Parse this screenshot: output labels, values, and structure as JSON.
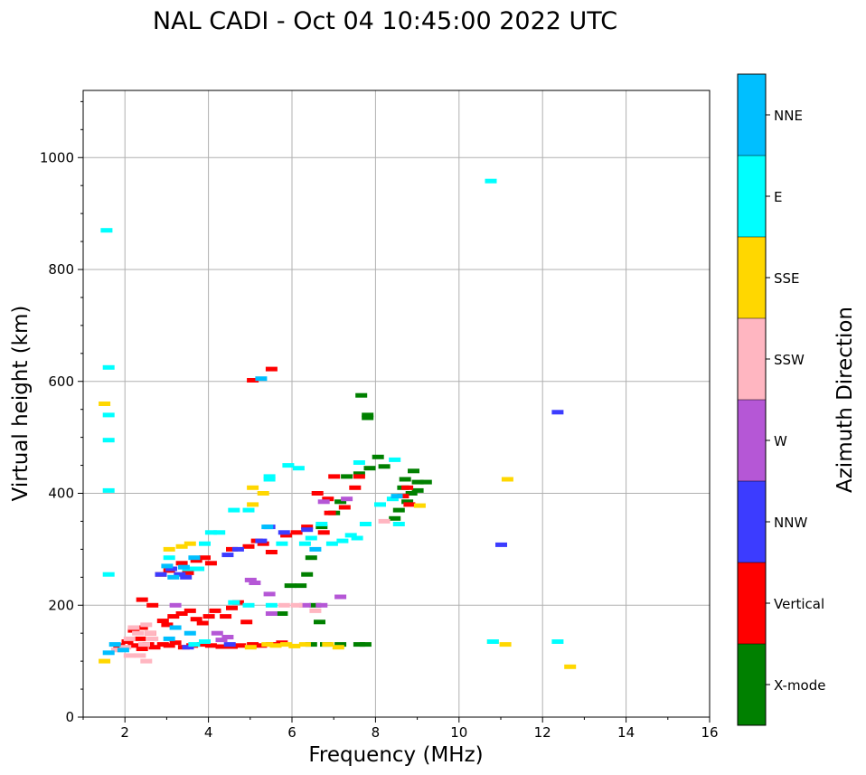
{
  "chart_data": {
    "type": "scatter",
    "title": "NAL CADI - Oct 04 10:45:00 2022 UTC",
    "xlabel": "Frequency (MHz)",
    "ylabel": "Virtual height (km)",
    "xlim": [
      1,
      16
    ],
    "ylim": [
      0,
      1120
    ],
    "xticks": [
      2,
      4,
      6,
      8,
      10,
      12,
      14,
      16
    ],
    "yticks": [
      0,
      200,
      400,
      600,
      800,
      1000
    ],
    "grid": true,
    "colorbar_label": "Azimuth Direction",
    "colorbar": [
      {
        "label": "X-mode",
        "color": "#008000"
      },
      {
        "label": "Vertical",
        "color": "#ff0000"
      },
      {
        "label": "NNW",
        "color": "#3c3cff"
      },
      {
        "label": "W",
        "color": "#b557d6"
      },
      {
        "label": "SSW",
        "color": "#ffb6c1"
      },
      {
        "label": "SSE",
        "color": "#ffd700"
      },
      {
        "label": "E",
        "color": "#00ffff"
      },
      {
        "label": "NNE",
        "color": "#00bfff"
      }
    ],
    "series": [
      {
        "name": "X-mode",
        "points": [
          [
            6.45,
            130
          ],
          [
            6.8,
            130
          ],
          [
            7.15,
            130
          ],
          [
            7.6,
            130
          ],
          [
            7.75,
            130
          ],
          [
            5.75,
            185
          ],
          [
            5.95,
            235
          ],
          [
            6.2,
            235
          ],
          [
            6.35,
            255
          ],
          [
            6.55,
            200
          ],
          [
            6.65,
            170
          ],
          [
            6.45,
            285
          ],
          [
            6.7,
            340
          ],
          [
            7.0,
            365
          ],
          [
            7.15,
            385
          ],
          [
            7.3,
            430
          ],
          [
            7.6,
            435
          ],
          [
            7.65,
            575
          ],
          [
            7.8,
            540
          ],
          [
            7.8,
            535
          ],
          [
            7.85,
            445
          ],
          [
            8.05,
            465
          ],
          [
            8.2,
            448
          ],
          [
            8.45,
            355
          ],
          [
            8.55,
            370
          ],
          [
            8.65,
            410
          ],
          [
            8.7,
            425
          ],
          [
            8.85,
            400
          ],
          [
            8.9,
            440
          ],
          [
            9.0,
            420
          ],
          [
            9.2,
            420
          ],
          [
            8.75,
            385
          ],
          [
            9.0,
            405
          ]
        ]
      },
      {
        "name": "Vertical",
        "points": [
          [
            1.85,
            128
          ],
          [
            2.05,
            135
          ],
          [
            2.2,
            128
          ],
          [
            2.35,
            140
          ],
          [
            2.4,
            122
          ],
          [
            2.55,
            130
          ],
          [
            2.7,
            125
          ],
          [
            2.9,
            130
          ],
          [
            3.05,
            128
          ],
          [
            3.2,
            133
          ],
          [
            3.4,
            125
          ],
          [
            3.6,
            128
          ],
          [
            3.85,
            130
          ],
          [
            4.05,
            128
          ],
          [
            4.3,
            126
          ],
          [
            4.55,
            126
          ],
          [
            4.75,
            128
          ],
          [
            5.05,
            130
          ],
          [
            5.25,
            128
          ],
          [
            5.5,
            130
          ],
          [
            5.75,
            133
          ],
          [
            2.2,
            155
          ],
          [
            2.4,
            160
          ],
          [
            2.6,
            150
          ],
          [
            2.9,
            172
          ],
          [
            3.0,
            165
          ],
          [
            3.15,
            180
          ],
          [
            3.35,
            185
          ],
          [
            3.55,
            190
          ],
          [
            3.7,
            175
          ],
          [
            3.85,
            168
          ],
          [
            4.0,
            180
          ],
          [
            4.15,
            190
          ],
          [
            4.4,
            180
          ],
          [
            4.55,
            195
          ],
          [
            4.7,
            205
          ],
          [
            4.9,
            170
          ],
          [
            2.4,
            210
          ],
          [
            2.65,
            200
          ],
          [
            2.85,
            255
          ],
          [
            3.05,
            262
          ],
          [
            3.35,
            275
          ],
          [
            3.5,
            258
          ],
          [
            3.7,
            280
          ],
          [
            3.9,
            285
          ],
          [
            4.05,
            275
          ],
          [
            4.55,
            300
          ],
          [
            4.95,
            305
          ],
          [
            5.15,
            315
          ],
          [
            5.3,
            310
          ],
          [
            5.5,
            295
          ],
          [
            5.85,
            325
          ],
          [
            6.1,
            330
          ],
          [
            6.35,
            340
          ],
          [
            6.75,
            330
          ],
          [
            6.9,
            365
          ],
          [
            7.25,
            375
          ],
          [
            7.5,
            410
          ],
          [
            6.6,
            400
          ],
          [
            6.85,
            390
          ],
          [
            7.0,
            430
          ],
          [
            7.6,
            430
          ],
          [
            5.5,
            622
          ],
          [
            5.05,
            602
          ],
          [
            8.65,
            395
          ],
          [
            8.75,
            410
          ],
          [
            8.8,
            380
          ]
        ]
      },
      {
        "name": "NNW",
        "points": [
          [
            2.85,
            255
          ],
          [
            3.1,
            265
          ],
          [
            3.3,
            255
          ],
          [
            3.45,
            250
          ],
          [
            4.45,
            290
          ],
          [
            4.7,
            300
          ],
          [
            5.25,
            315
          ],
          [
            5.45,
            340
          ],
          [
            5.8,
            330
          ],
          [
            6.35,
            335
          ],
          [
            4.5,
            130
          ],
          [
            3.5,
            125
          ],
          [
            11.0,
            308
          ],
          [
            12.35,
            545
          ]
        ]
      },
      {
        "name": "W",
        "points": [
          [
            4.2,
            150
          ],
          [
            4.3,
            138
          ],
          [
            4.45,
            143
          ],
          [
            5.0,
            245
          ],
          [
            5.1,
            240
          ],
          [
            5.45,
            220
          ],
          [
            5.5,
            185
          ],
          [
            6.3,
            200
          ],
          [
            6.7,
            200
          ],
          [
            7.15,
            215
          ],
          [
            6.75,
            385
          ],
          [
            7.3,
            390
          ],
          [
            3.2,
            200
          ]
        ]
      },
      {
        "name": "SSW",
        "points": [
          [
            1.8,
            120
          ],
          [
            2.0,
            125
          ],
          [
            2.1,
            140
          ],
          [
            2.2,
            160
          ],
          [
            2.3,
            150
          ],
          [
            2.35,
            110
          ],
          [
            2.45,
            130
          ],
          [
            2.5,
            165
          ],
          [
            2.6,
            150
          ],
          [
            2.1,
            110
          ],
          [
            2.5,
            100
          ],
          [
            2.65,
            140
          ],
          [
            8.2,
            350
          ],
          [
            5.8,
            200
          ],
          [
            6.1,
            200
          ],
          [
            6.55,
            190
          ]
        ]
      },
      {
        "name": "SSE",
        "points": [
          [
            1.5,
            100
          ],
          [
            1.5,
            560
          ],
          [
            5.0,
            125
          ],
          [
            5.4,
            130
          ],
          [
            5.6,
            128
          ],
          [
            5.85,
            130
          ],
          [
            6.05,
            127
          ],
          [
            6.3,
            130
          ],
          [
            6.85,
            130
          ],
          [
            7.1,
            125
          ],
          [
            5.05,
            380
          ],
          [
            5.3,
            400
          ],
          [
            5.05,
            410
          ],
          [
            3.05,
            300
          ],
          [
            3.35,
            305
          ],
          [
            3.55,
            310
          ],
          [
            10.8,
            135
          ],
          [
            11.1,
            130
          ],
          [
            11.15,
            425
          ],
          [
            12.65,
            90
          ],
          [
            9.05,
            378
          ]
        ]
      },
      {
        "name": "E",
        "points": [
          [
            1.55,
            870
          ],
          [
            1.6,
            625
          ],
          [
            1.6,
            540
          ],
          [
            1.6,
            495
          ],
          [
            1.6,
            405
          ],
          [
            1.6,
            255
          ],
          [
            3.05,
            285
          ],
          [
            3.5,
            265
          ],
          [
            3.75,
            265
          ],
          [
            3.9,
            310
          ],
          [
            4.05,
            330
          ],
          [
            4.25,
            330
          ],
          [
            4.6,
            370
          ],
          [
            4.95,
            370
          ],
          [
            5.45,
            430
          ],
          [
            5.45,
            425
          ],
          [
            5.9,
            450
          ],
          [
            6.15,
            445
          ],
          [
            5.75,
            310
          ],
          [
            6.3,
            310
          ],
          [
            6.45,
            320
          ],
          [
            6.7,
            345
          ],
          [
            6.95,
            310
          ],
          [
            7.2,
            315
          ],
          [
            7.4,
            325
          ],
          [
            7.55,
            320
          ],
          [
            7.75,
            345
          ],
          [
            7.6,
            455
          ],
          [
            8.1,
            380
          ],
          [
            8.4,
            390
          ],
          [
            8.45,
            460
          ],
          [
            8.55,
            345
          ],
          [
            10.75,
            958
          ],
          [
            10.8,
            135
          ],
          [
            12.35,
            135
          ],
          [
            4.95,
            200
          ],
          [
            5.5,
            200
          ],
          [
            3.65,
            130
          ],
          [
            3.9,
            135
          ],
          [
            4.6,
            205
          ]
        ]
      },
      {
        "name": "NNE",
        "points": [
          [
            1.6,
            115
          ],
          [
            1.95,
            120
          ],
          [
            3.05,
            140
          ],
          [
            3.2,
            160
          ],
          [
            3.4,
            268
          ],
          [
            3.15,
            250
          ],
          [
            3.0,
            270
          ],
          [
            3.65,
            285
          ],
          [
            5.4,
            340
          ],
          [
            6.55,
            300
          ],
          [
            8.5,
            395
          ],
          [
            5.25,
            605
          ],
          [
            1.75,
            130
          ],
          [
            3.55,
            150
          ]
        ]
      }
    ]
  }
}
